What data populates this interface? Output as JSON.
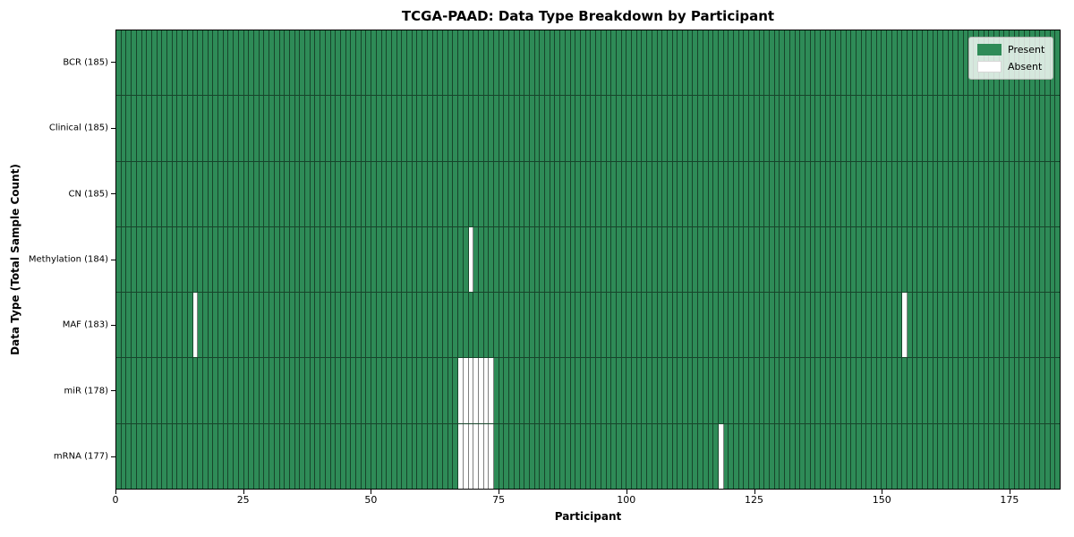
{
  "chart_data": {
    "type": "heatmap",
    "title": "TCGA-PAAD: Data Type Breakdown by Participant",
    "xlabel": "Participant",
    "ylabel": "Data Type (Total Sample Count)",
    "x_ticks": [
      0,
      25,
      50,
      75,
      100,
      125,
      150,
      175
    ],
    "x_range": [
      0,
      185
    ],
    "n_participants": 185,
    "grid": "cell-edges",
    "legend": {
      "position": "upper right",
      "present_label": "Present",
      "absent_label": "Absent"
    },
    "colors": {
      "present": "#2E8B57",
      "absent": "#FFFFFF"
    },
    "rows": [
      {
        "label": "BCR (185)",
        "data_type": "BCR",
        "total_samples": 185,
        "absent_participants": []
      },
      {
        "label": "Clinical (185)",
        "data_type": "Clinical",
        "total_samples": 185,
        "absent_participants": []
      },
      {
        "label": "CN (185)",
        "data_type": "CN",
        "total_samples": 185,
        "absent_participants": []
      },
      {
        "label": "Methylation (184)",
        "data_type": "Methylation",
        "total_samples": 184,
        "absent_participants": [
          69
        ]
      },
      {
        "label": "MAF (183)",
        "data_type": "MAF",
        "total_samples": 183,
        "absent_participants": [
          15,
          154
        ]
      },
      {
        "label": "miR (178)",
        "data_type": "miR",
        "total_samples": 178,
        "absent_participants": [
          67,
          68,
          69,
          70,
          71,
          72,
          73
        ]
      },
      {
        "label": "mRNA (177)",
        "data_type": "mRNA",
        "total_samples": 177,
        "absent_participants": [
          67,
          68,
          69,
          70,
          71,
          72,
          73,
          118
        ]
      }
    ]
  }
}
